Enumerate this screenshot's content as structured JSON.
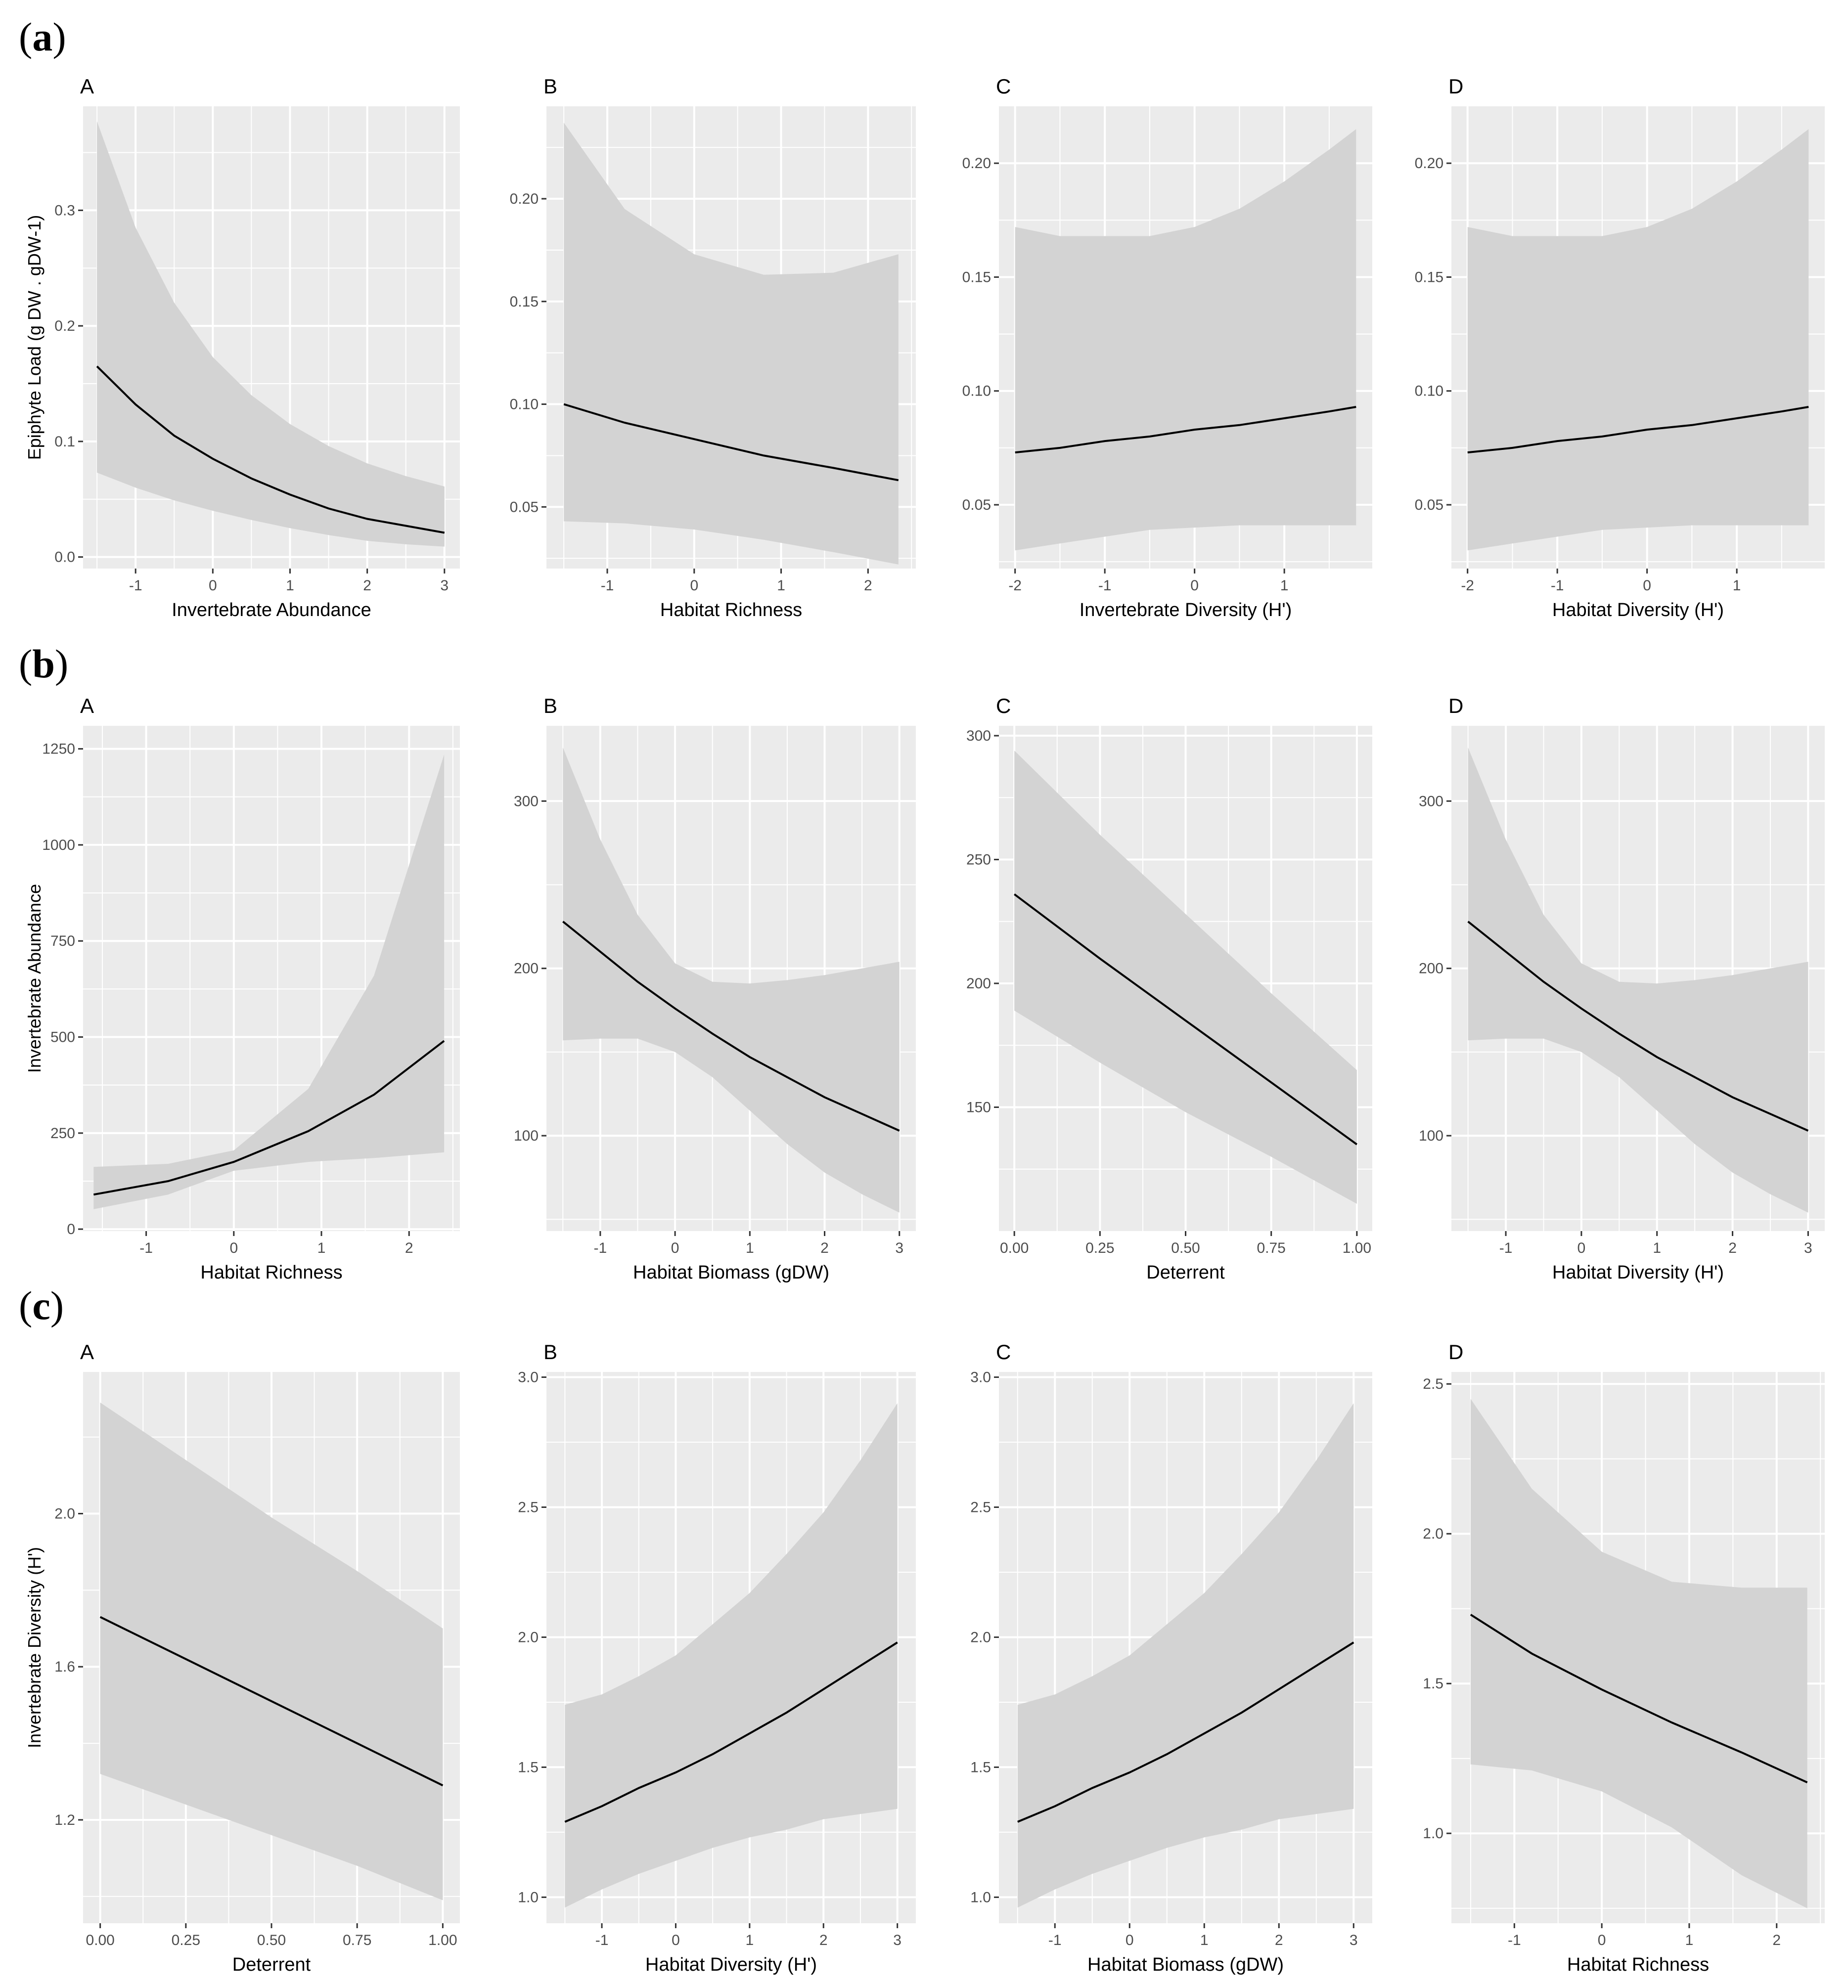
{
  "figure": {
    "rows": [
      {
        "label_open": "(",
        "label_letter": "a",
        "label_close": ")"
      },
      {
        "label_open": "(",
        "label_letter": "b",
        "label_close": ")"
      },
      {
        "label_open": "(",
        "label_letter": "c",
        "label_close": ")"
      }
    ]
  },
  "colors": {
    "panel_bg": "#ebebeb",
    "grid": "#ffffff",
    "ribbon": "#d3d3d3",
    "line": "#000000",
    "text": "#4d4d4d"
  },
  "chart_data": [
    {
      "id": "a-A",
      "type": "line",
      "panel_letter": "A",
      "xlabel": "Invertebrate Abundance",
      "ylabel": "Epiphyte Load (g DW . gDW-1)",
      "xlim": [
        -1.68,
        3.2
      ],
      "ylim": [
        -0.01,
        0.39
      ],
      "xticks": [
        -1,
        0,
        1,
        2,
        3
      ],
      "xtick_labels": [
        "-1",
        "0",
        "1",
        "2",
        "3"
      ],
      "yticks": [
        0.0,
        0.1,
        0.2,
        0.3
      ],
      "ytick_labels": [
        "0.0",
        "0.1",
        "0.2",
        "0.3"
      ],
      "x": [
        -1.5,
        -1,
        -0.5,
        0,
        0.5,
        1,
        1.5,
        2,
        2.5,
        3
      ],
      "y": [
        0.165,
        0.132,
        0.105,
        0.085,
        0.068,
        0.054,
        0.042,
        0.033,
        0.027,
        0.021
      ],
      "lower": [
        0.073,
        0.06,
        0.049,
        0.04,
        0.032,
        0.025,
        0.019,
        0.014,
        0.011,
        0.009
      ],
      "upper": [
        0.377,
        0.285,
        0.22,
        0.173,
        0.14,
        0.115,
        0.096,
        0.081,
        0.07,
        0.061
      ]
    },
    {
      "id": "a-B",
      "type": "line",
      "panel_letter": "B",
      "xlabel": "Habitat Richness",
      "ylabel": "",
      "xlim": [
        -1.7,
        2.55
      ],
      "ylim": [
        0.02,
        0.245
      ],
      "xticks": [
        -1,
        0,
        1,
        2
      ],
      "xtick_labels": [
        "-1",
        "0",
        "1",
        "2"
      ],
      "yticks": [
        0.05,
        0.1,
        0.15,
        0.2
      ],
      "ytick_labels": [
        "0.05",
        "0.10",
        "0.15",
        "0.20"
      ],
      "x": [
        -1.5,
        -0.8,
        0,
        0.8,
        1.6,
        2.35
      ],
      "y": [
        0.1,
        0.091,
        0.083,
        0.075,
        0.069,
        0.063
      ],
      "lower": [
        0.043,
        0.042,
        0.039,
        0.034,
        0.028,
        0.022
      ],
      "upper": [
        0.237,
        0.195,
        0.173,
        0.163,
        0.164,
        0.173
      ]
    },
    {
      "id": "a-C",
      "type": "line",
      "panel_letter": "C",
      "xlabel": "Invertebrate Diversity (H')",
      "ylabel": "",
      "xlim": [
        -2.18,
        1.98
      ],
      "ylim": [
        0.022,
        0.225
      ],
      "xticks": [
        -2,
        -1,
        0,
        1
      ],
      "xtick_labels": [
        "-2",
        "-1",
        "0",
        "1"
      ],
      "yticks": [
        0.05,
        0.1,
        0.15,
        0.2
      ],
      "ytick_labels": [
        "0.05",
        "0.10",
        "0.15",
        "0.20"
      ],
      "x": [
        -2,
        -1.5,
        -1,
        -0.5,
        0,
        0.5,
        1,
        1.5,
        1.8
      ],
      "y": [
        0.073,
        0.075,
        0.078,
        0.08,
        0.083,
        0.085,
        0.088,
        0.091,
        0.093
      ],
      "lower": [
        0.03,
        0.033,
        0.036,
        0.039,
        0.04,
        0.041,
        0.041,
        0.041,
        0.041
      ],
      "upper": [
        0.172,
        0.168,
        0.168,
        0.168,
        0.172,
        0.18,
        0.192,
        0.206,
        0.215
      ]
    },
    {
      "id": "a-D",
      "type": "line",
      "panel_letter": "D",
      "xlabel": "Habitat Diversity (H')",
      "ylabel": "",
      "xlim": [
        -2.18,
        1.98
      ],
      "ylim": [
        0.022,
        0.225
      ],
      "xticks": [
        -2,
        -1,
        0,
        1
      ],
      "xtick_labels": [
        "-2",
        "-1",
        "0",
        "1"
      ],
      "yticks": [
        0.05,
        0.1,
        0.15,
        0.2
      ],
      "ytick_labels": [
        "0.05",
        "0.10",
        "0.15",
        "0.20"
      ],
      "x": [
        -2,
        -1.5,
        -1,
        -0.5,
        0,
        0.5,
        1,
        1.5,
        1.8
      ],
      "y": [
        0.073,
        0.075,
        0.078,
        0.08,
        0.083,
        0.085,
        0.088,
        0.091,
        0.093
      ],
      "lower": [
        0.03,
        0.033,
        0.036,
        0.039,
        0.04,
        0.041,
        0.041,
        0.041,
        0.041
      ],
      "upper": [
        0.172,
        0.168,
        0.168,
        0.168,
        0.172,
        0.18,
        0.192,
        0.206,
        0.215
      ]
    },
    {
      "id": "b-A",
      "type": "line",
      "panel_letter": "A",
      "xlabel": "Habitat Richness",
      "ylabel": "Invertebrate Abundance",
      "xlim": [
        -1.72,
        2.58
      ],
      "ylim": [
        -5,
        1310
      ],
      "xticks": [
        -1,
        0,
        1,
        2
      ],
      "xtick_labels": [
        "-1",
        "0",
        "1",
        "2"
      ],
      "yticks": [
        0,
        250,
        500,
        750,
        1000,
        1250
      ],
      "ytick_labels": [
        "0",
        "250",
        "500",
        "750",
        "1000",
        "1250"
      ],
      "x": [
        -1.6,
        -0.75,
        0,
        0.85,
        1.6,
        2.4
      ],
      "y": [
        90,
        125,
        175,
        255,
        350,
        490
      ],
      "lower": [
        52,
        90,
        152,
        175,
        185,
        200
      ],
      "upper": [
        162,
        170,
        205,
        365,
        660,
        1235
      ]
    },
    {
      "id": "b-B",
      "type": "line",
      "panel_letter": "B",
      "xlabel": "Habitat Biomass (gDW)",
      "ylabel": "",
      "xlim": [
        -1.72,
        3.22
      ],
      "ylim": [
        43,
        345
      ],
      "xticks": [
        -1,
        0,
        1,
        2,
        3
      ],
      "xtick_labels": [
        "-1",
        "0",
        "1",
        "2",
        "3"
      ],
      "yticks": [
        100,
        200,
        300
      ],
      "ytick_labels": [
        "100",
        "200",
        "300"
      ],
      "x": [
        -1.5,
        -1,
        -0.5,
        0,
        0.5,
        1,
        1.5,
        2,
        2.5,
        3
      ],
      "y": [
        228,
        210,
        192,
        176,
        161,
        147,
        135,
        123,
        113,
        103
      ],
      "lower": [
        157,
        158,
        158,
        150,
        135,
        115,
        95,
        78,
        65,
        54
      ],
      "upper": [
        332,
        277,
        232,
        203,
        192,
        191,
        193,
        196,
        200,
        204
      ]
    },
    {
      "id": "b-C",
      "type": "line",
      "panel_letter": "C",
      "xlabel": "Deterrent",
      "ylabel": "",
      "xlim": [
        -0.045,
        1.045
      ],
      "ylim": [
        100,
        304
      ],
      "xticks": [
        0,
        0.25,
        0.5,
        0.75,
        1
      ],
      "xtick_labels": [
        "0.00",
        "0.25",
        "0.50",
        "0.75",
        "1.00"
      ],
      "yticks": [
        150,
        200,
        250,
        300
      ],
      "ytick_labels": [
        "150",
        "200",
        "250",
        "300"
      ],
      "x": [
        0,
        0.25,
        0.5,
        0.75,
        1
      ],
      "y": [
        236,
        210,
        185,
        160,
        135
      ],
      "lower": [
        189,
        168,
        148,
        130,
        111
      ],
      "upper": [
        294,
        260,
        228,
        196,
        165
      ]
    },
    {
      "id": "b-D",
      "type": "line",
      "panel_letter": "D",
      "xlabel": "Habitat Diversity (H')",
      "ylabel": "",
      "xlim": [
        -1.72,
        3.22
      ],
      "ylim": [
        43,
        345
      ],
      "xticks": [
        -1,
        0,
        1,
        2,
        3
      ],
      "xtick_labels": [
        "-1",
        "0",
        "1",
        "2",
        "3"
      ],
      "yticks": [
        100,
        200,
        300
      ],
      "ytick_labels": [
        "100",
        "200",
        "300"
      ],
      "x": [
        -1.5,
        -1,
        -0.5,
        0,
        0.5,
        1,
        1.5,
        2,
        2.5,
        3
      ],
      "y": [
        228,
        210,
        192,
        176,
        161,
        147,
        135,
        123,
        113,
        103
      ],
      "lower": [
        157,
        158,
        158,
        150,
        135,
        115,
        95,
        78,
        65,
        54
      ],
      "upper": [
        332,
        277,
        232,
        203,
        192,
        191,
        193,
        196,
        200,
        204
      ]
    },
    {
      "id": "c-A",
      "type": "line",
      "panel_letter": "A",
      "xlabel": "Deterrent",
      "ylabel": "Invertebrate Diversity (H')",
      "xlim": [
        -0.05,
        1.05
      ],
      "ylim": [
        0.93,
        2.37
      ],
      "xticks": [
        0,
        0.25,
        0.5,
        0.75,
        1
      ],
      "xtick_labels": [
        "0.00",
        "0.25",
        "0.50",
        "0.75",
        "1.00"
      ],
      "yticks": [
        1.2,
        1.6,
        2.0
      ],
      "ytick_labels": [
        "1.2",
        "1.6",
        "2.0"
      ],
      "x": [
        0,
        0.25,
        0.5,
        0.75,
        1
      ],
      "y": [
        1.73,
        1.62,
        1.51,
        1.4,
        1.29
      ],
      "lower": [
        1.32,
        1.24,
        1.16,
        1.08,
        0.99
      ],
      "upper": [
        2.29,
        2.14,
        1.99,
        1.85,
        1.7
      ]
    },
    {
      "id": "c-B",
      "type": "line",
      "panel_letter": "B",
      "xlabel": "Habitat Diversity (H')",
      "ylabel": "",
      "xlim": [
        -1.75,
        3.25
      ],
      "ylim": [
        0.9,
        3.02
      ],
      "xticks": [
        -1,
        0,
        1,
        2,
        3
      ],
      "xtick_labels": [
        "-1",
        "0",
        "1",
        "2",
        "3"
      ],
      "yticks": [
        1.0,
        1.5,
        2.0,
        2.5,
        3.0
      ],
      "ytick_labels": [
        "1.0",
        "1.5",
        "2.0",
        "2.5",
        "3.0"
      ],
      "x": [
        -1.5,
        -1,
        -0.5,
        0,
        0.5,
        1,
        1.5,
        2,
        2.5,
        3
      ],
      "y": [
        1.29,
        1.35,
        1.42,
        1.48,
        1.55,
        1.63,
        1.71,
        1.8,
        1.89,
        1.98
      ],
      "lower": [
        0.96,
        1.03,
        1.09,
        1.14,
        1.19,
        1.23,
        1.26,
        1.3,
        1.32,
        1.34
      ],
      "upper": [
        1.74,
        1.78,
        1.85,
        1.93,
        2.05,
        2.17,
        2.32,
        2.48,
        2.68,
        2.9
      ]
    },
    {
      "id": "c-C",
      "type": "line",
      "panel_letter": "C",
      "xlabel": "Habitat Biomass (gDW)",
      "ylabel": "",
      "xlim": [
        -1.75,
        3.25
      ],
      "ylim": [
        0.9,
        3.02
      ],
      "xticks": [
        -1,
        0,
        1,
        2,
        3
      ],
      "xtick_labels": [
        "-1",
        "0",
        "1",
        "2",
        "3"
      ],
      "yticks": [
        1.0,
        1.5,
        2.0,
        2.5,
        3.0
      ],
      "ytick_labels": [
        "1.0",
        "1.5",
        "2.0",
        "2.5",
        "3.0"
      ],
      "x": [
        -1.5,
        -1,
        -0.5,
        0,
        0.5,
        1,
        1.5,
        2,
        2.5,
        3
      ],
      "y": [
        1.29,
        1.35,
        1.42,
        1.48,
        1.55,
        1.63,
        1.71,
        1.8,
        1.89,
        1.98
      ],
      "lower": [
        0.96,
        1.03,
        1.09,
        1.14,
        1.19,
        1.23,
        1.26,
        1.3,
        1.32,
        1.34
      ],
      "upper": [
        1.74,
        1.78,
        1.85,
        1.93,
        2.05,
        2.17,
        2.32,
        2.48,
        2.68,
        2.9
      ]
    },
    {
      "id": "c-D",
      "type": "line",
      "panel_letter": "D",
      "xlabel": "Habitat Richness",
      "ylabel": "",
      "xlim": [
        -1.72,
        2.55
      ],
      "ylim": [
        0.7,
        2.54
      ],
      "xticks": [
        -1,
        0,
        1,
        2
      ],
      "xtick_labels": [
        "-1",
        "0",
        "1",
        "2"
      ],
      "yticks": [
        1.0,
        1.5,
        2.0,
        2.5
      ],
      "ytick_labels": [
        "1.0",
        "1.5",
        "2.0",
        "2.5"
      ],
      "x": [
        -1.5,
        -0.8,
        0,
        0.8,
        1.6,
        2.35
      ],
      "y": [
        1.73,
        1.6,
        1.48,
        1.37,
        1.27,
        1.17
      ],
      "lower": [
        1.23,
        1.21,
        1.14,
        1.02,
        0.86,
        0.75
      ],
      "upper": [
        2.45,
        2.15,
        1.94,
        1.84,
        1.82,
        1.82
      ]
    }
  ]
}
